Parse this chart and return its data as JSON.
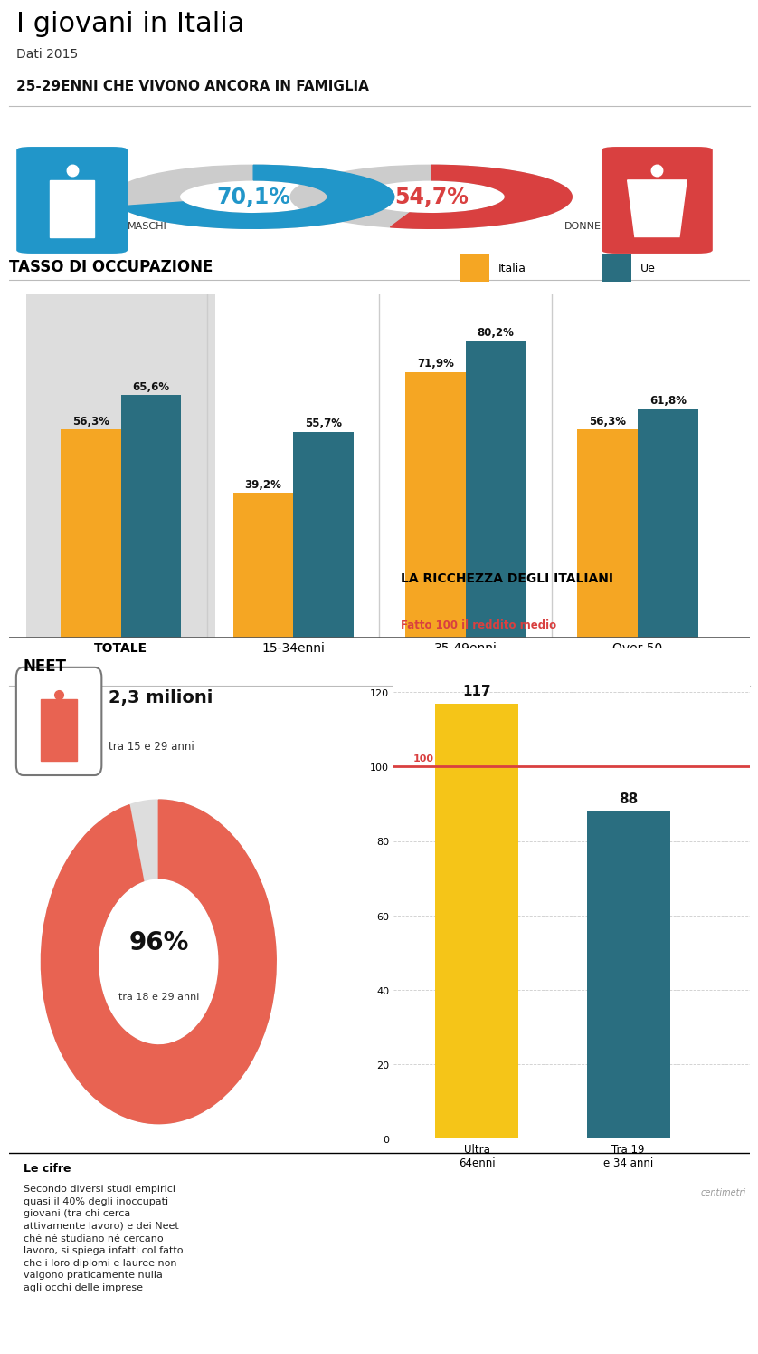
{
  "title": "I giovani in Italia",
  "subtitle": "Dati 2015",
  "section1_title": "25-29ENNI CHE VIVONO ANCORA IN FAMIGLIA",
  "male_pct": 70.1,
  "female_pct": 54.7,
  "male_label": "MASCHI",
  "female_label": "DONNE",
  "male_color": "#2196C9",
  "female_color": "#D94040",
  "donut_bg_color": "#CCCCCC",
  "section2_title": "TASSO DI OCCUPAZIONE",
  "bar_categories": [
    "TOTALE",
    "15-34enni",
    "35-49enni",
    "Over 50"
  ],
  "bar_italia": [
    56.3,
    39.2,
    71.9,
    56.3
  ],
  "bar_ue": [
    65.6,
    55.7,
    80.2,
    61.8
  ],
  "bar_italia_color": "#F5A623",
  "bar_ue_color": "#2A6E80",
  "totale_bg": "#DDDDDD",
  "legend_italia": "Italia",
  "legend_ue": "Ue",
  "section3_title": "NEET",
  "neet_milioni": "2,3 milioni",
  "neet_sub": "tra 15 e 29 anni",
  "neet_pct": 96,
  "neet_pct_label": "96%",
  "neet_pct_sub": "tra 18 e 29 anni",
  "neet_color": "#E86352",
  "section4_title": "LA RICCHEZZA DEGLI ITALIANI",
  "section4_sub": "Fatto 100 il reddito medio",
  "ricchezza_categories": [
    "Ultra\n64enni",
    "Tra 19\ne 34 anni"
  ],
  "ricchezza_values": [
    117,
    88
  ],
  "ricchezza_colors": [
    "#F5C518",
    "#2A6E80"
  ],
  "ref_line": 100,
  "ref_line_color": "#D94040",
  "footer_bold": "Le cifre",
  "footer_text": "Secondo diversi studi empirici\nquasi il 40% degli inoccupati\ngiovani (tra chi cerca\nattivamente lavoro) e dei Neet\nché né studiano né cercano\nlavoro, si spiega infatti col fatto\nche i loro diplomi e lauree non\nvalgono praticamente nulla\nagli occhi delle imprese",
  "centimetri_label": "centimetri",
  "bg_color": "#FFFFFF"
}
